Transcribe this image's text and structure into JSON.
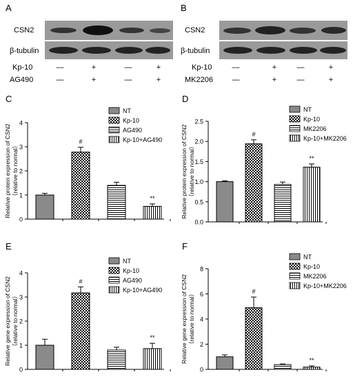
{
  "panels": {
    "A": {
      "letter": "A",
      "row1": "CSN2",
      "row2": "β-tubulin",
      "treat1": "Kp-10",
      "treat2": "AG490",
      "signs1": [
        "—",
        "+",
        "—",
        "+"
      ],
      "signs2": [
        "—",
        "+",
        "—",
        "+"
      ]
    },
    "B": {
      "letter": "B",
      "row1": "CSN2",
      "row2": "β-tubulin",
      "treat1": "Kp-10",
      "treat2": "MK2206",
      "signs1": [
        "—",
        "+",
        "—",
        "+"
      ],
      "signs2": [
        "—",
        "+",
        "—",
        "+"
      ]
    }
  },
  "chart_data": [
    {
      "letter": "C",
      "type": "bar",
      "categories": [
        "NT",
        "Kp-10",
        "AG490",
        "Kp-10+AG490"
      ],
      "values": [
        1.0,
        2.78,
        1.4,
        0.53
      ],
      "errors": [
        0.07,
        0.2,
        0.13,
        0.1
      ],
      "annotations": [
        "",
        "#",
        "",
        "**"
      ],
      "ylabel1": "Relative protein expression of CSN2",
      "ylabel2": "（relative to normal）",
      "ylim": [
        0,
        4
      ],
      "ticks": [
        "0",
        "1",
        "2",
        "3",
        "4"
      ],
      "legend": "top-right"
    },
    {
      "letter": "D",
      "type": "bar",
      "categories": [
        "NT",
        "Kp-10",
        "MK2206",
        "Kp-10+MK2206"
      ],
      "values": [
        1.0,
        1.94,
        0.93,
        1.36
      ],
      "errors": [
        0.02,
        0.1,
        0.06,
        0.08
      ],
      "annotations": [
        "",
        "#",
        "",
        "**"
      ],
      "ylabel1": "Relative protein expression of CSN2",
      "ylabel2": "（relative to normal）",
      "ylim": [
        0,
        2.5
      ],
      "ticks": [
        "0.0",
        "0.5",
        "1.0",
        "1.5",
        "2.0",
        "2.5"
      ],
      "legend": "top-right"
    },
    {
      "letter": "E",
      "type": "bar",
      "categories": [
        "NT",
        "Kp-10",
        "AG490",
        "Kp-10+AG490"
      ],
      "values": [
        1.0,
        3.17,
        0.8,
        0.86
      ],
      "errors": [
        0.25,
        0.25,
        0.12,
        0.22
      ],
      "annotations": [
        "",
        "#",
        "",
        "**"
      ],
      "ylabel1": "Relative gene expression of CSN2",
      "ylabel2": "（relative to normal）",
      "ylim": [
        0,
        4
      ],
      "ticks": [
        "0",
        "1",
        "2",
        "3",
        "4"
      ],
      "legend": "top-right"
    },
    {
      "letter": "F",
      "type": "bar",
      "categories": [
        "NT",
        "Kp-10",
        "MK2206",
        "Kp-10+MK2206"
      ],
      "values": [
        1.0,
        4.9,
        0.38,
        0.18
      ],
      "errors": [
        0.15,
        0.85,
        0.05,
        0.1
      ],
      "annotations": [
        "",
        "#",
        "",
        "**"
      ],
      "ylabel1": "Relative gene expression of CSN2",
      "ylabel2": "（relative to normal）",
      "ylim": [
        0,
        8
      ],
      "ticks": [
        "0",
        "2",
        "4",
        "6",
        "8"
      ],
      "legend": "top-right"
    }
  ],
  "colors": {
    "bar_solid": "#8a8a8a",
    "bar_outline": "#000000"
  }
}
